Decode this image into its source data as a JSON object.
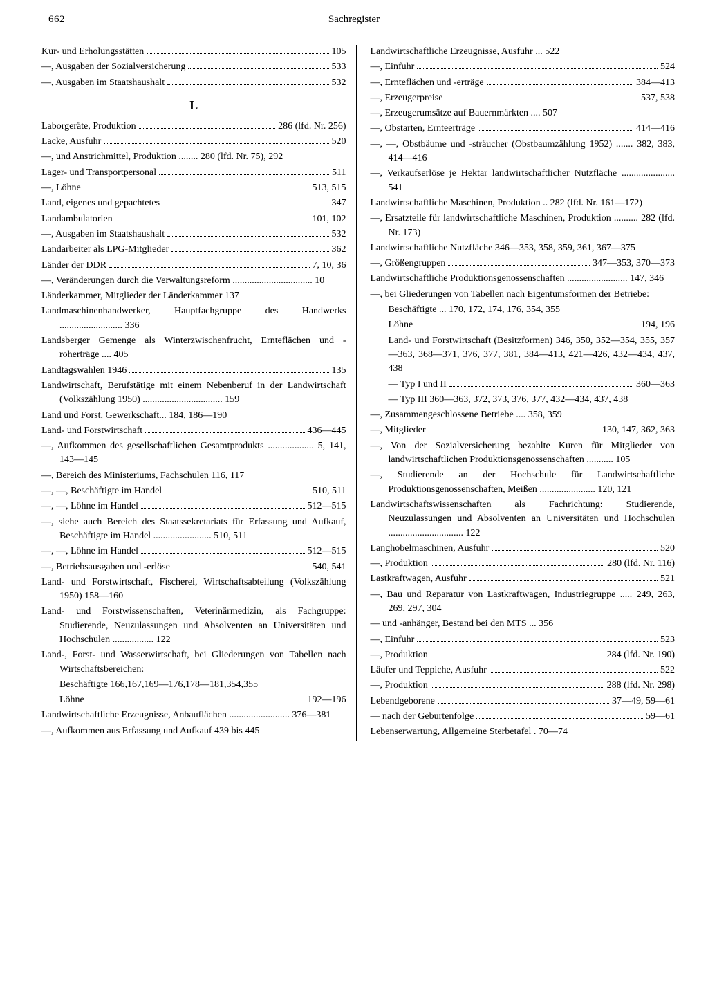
{
  "page_number": "662",
  "title": "Sachregister",
  "section_letter": "L",
  "left": [
    {
      "t": "dot",
      "label": "Kur- und Erholungsstätten",
      "page": "105"
    },
    {
      "t": "dot",
      "label": "—, Ausgaben der Sozialversicherung",
      "page": "533"
    },
    {
      "t": "dot",
      "label": "—, Ausgaben im Staatshaushalt",
      "page": "532"
    },
    {
      "t": "section"
    },
    {
      "t": "dot",
      "label": "Laborgeräte, Produktion",
      "page": "286 (lfd. Nr. 256)"
    },
    {
      "t": "dot",
      "label": "Lacke, Ausfuhr",
      "page": "520"
    },
    {
      "t": "hang",
      "text": "—, und Anstrichmittel, Produktion ........ 280 (lfd. Nr. 75),  292"
    },
    {
      "t": "dot",
      "label": "Lager- und Transportpersonal",
      "page": "511"
    },
    {
      "t": "dot",
      "label": "—, Löhne",
      "page": "513, 515"
    },
    {
      "t": "dot",
      "label": "Land, eigenes und gepachtetes",
      "page": "347"
    },
    {
      "t": "dot",
      "label": "Landambulatorien",
      "page": "101, 102"
    },
    {
      "t": "dot",
      "label": "—, Ausgaben im Staatshaushalt",
      "page": "532"
    },
    {
      "t": "dot",
      "label": "Landarbeiter als LPG-Mitglieder",
      "page": "362"
    },
    {
      "t": "dot",
      "label": "Länder der DDR",
      "page": "7, 10,  36"
    },
    {
      "t": "hang",
      "text": "—, Veränderungen durch die Verwaltungs­reform .................................  10"
    },
    {
      "t": "plain",
      "text": "Länderkammer, Mitglieder der Länderkammer 137"
    },
    {
      "t": "hang",
      "text": "Landmaschinenhandwerker, Hauptfachgruppe des Handwerks .......................... 336"
    },
    {
      "t": "hang",
      "text": "Landsberger Gemenge als Winterzwischen­frucht, Ernteflächen und -roherträge .... 405"
    },
    {
      "t": "dot",
      "label": "Landtagswahlen 1946",
      "page": "135"
    },
    {
      "t": "hang",
      "text": "Landwirtschaft, Berufstätige mit einem Neben­beruf in der Landwirtschaft (Volkszählung 1950) ................................. 159"
    },
    {
      "t": "plain",
      "text": "Land und Forst, Gewerkschaft... 184, 186—190"
    },
    {
      "t": "dot",
      "label": "Land- und Forstwirtschaft",
      "page": "436—445"
    },
    {
      "t": "hang",
      "text": "—, Aufkommen des gesellschaftlichen Gesamt­produkts ................... 5, 141, 143—145"
    },
    {
      "t": "plain",
      "text": "—, Bereich des Ministeriums, Fachschulen 116, 117"
    },
    {
      "t": "dot",
      "label": "—, —, Beschäftigte im Handel",
      "page": "510, 511"
    },
    {
      "t": "dot",
      "label": "—, —, Löhne im Handel",
      "page": "512—515"
    },
    {
      "t": "hang",
      "text": "—, siehe auch Bereich des Staatssekretariats für Erfassung und Aufkauf, Beschäftigte im Handel ........................ 510, 511"
    },
    {
      "t": "dot",
      "label": "—, —, Löhne im Handel",
      "page": "512—515"
    },
    {
      "t": "dot",
      "label": "—, Betriebsausgaben und -erlöse",
      "page": "540, 541"
    },
    {
      "t": "hang",
      "text": "Land- und Forstwirtschaft, Fischerei, Wirt­schaftsabteilung (Volkszählung 1950) 158—160"
    },
    {
      "t": "hang",
      "text": "Land- und Forstwissenschaften, Veterinär­medizin, als Fachgruppe: Studierende, Neu­zulassungen und Absolventen an Universi­täten und Hochschulen ................. 122"
    },
    {
      "t": "hang",
      "text": "Land-, Forst- und Wasserwirtschaft, bei Gliede­rungen von Tabellen nach Wirtschafts­bereichen:"
    },
    {
      "t": "cont",
      "text": "Beschäftigte 166,167,169—176,178—181,354,355"
    },
    {
      "t": "cont-dot",
      "label": "Löhne",
      "page": "192—196"
    },
    {
      "t": "hang",
      "text": "Landwirtschaftliche Erzeugnisse, Anbau­flächen ......................... 376—381"
    },
    {
      "t": "hang",
      "text": "—, Aufkommen aus Erfassung und Aufkauf 439 bis 445"
    }
  ],
  "right": [
    {
      "t": "plain",
      "text": "Landwirtschaftliche Erzeugnisse, Ausfuhr ... 522"
    },
    {
      "t": "dot",
      "label": "—, Einfuhr",
      "page": "524"
    },
    {
      "t": "dot",
      "label": "—, Ernteflächen und -erträge",
      "page": "384—413"
    },
    {
      "t": "dot",
      "label": "—, Erzeugerpreise",
      "page": "537, 538"
    },
    {
      "t": "plain",
      "text": "—, Erzeugerumsätze auf Bauernmärkten .... 507"
    },
    {
      "t": "dot",
      "label": "—, Obstarten, Ernteerträge",
      "page": "414—416"
    },
    {
      "t": "hang",
      "text": "—, —, Obstbäume und -sträucher (Obstbaum­zählung 1952) ....... 382, 383, 414—416"
    },
    {
      "t": "hang",
      "text": "—, Verkaufserlöse je Hektar landwirtschaft­licher Nutzfläche ...................... 541"
    },
    {
      "t": "hang",
      "text": "Landwirtschaftliche Maschinen, Produktion .. 282 (lfd. Nr. 161—172)"
    },
    {
      "t": "hang",
      "text": "—, Ersatzteile für landwirtschaftliche Maschi­nen, Produktion .......... 282 (lfd. Nr. 173)"
    },
    {
      "t": "hang",
      "text": "Landwirtschaftliche Nutzfläche 346—353, 358, 359, 361, 367—375"
    },
    {
      "t": "dot",
      "label": "—, Größengruppen",
      "page": "347—353, 370—373"
    },
    {
      "t": "hang",
      "text": "Landwirtschaftliche Produktionsgenossen­schaften ......................... 147, 346"
    },
    {
      "t": "hang",
      "text": "—, bei Gliederungen von Tabellen nach Eigen­tumsformen der Betriebe:"
    },
    {
      "t": "cont",
      "text": "Beschäftigte ... 170, 172, 174, 176, 354, 355"
    },
    {
      "t": "cont-dot",
      "label": "Löhne",
      "page": "194, 196"
    },
    {
      "t": "cont",
      "text": "Land- und Forstwirtschaft (Besitzformen) 346, 350, 352—354, 355, 357—363, 368—371, 376, 377, 381, 384—413, 421—426, 432—434, 437, 438"
    },
    {
      "t": "cont-dot",
      "label": "—  Typ I und II",
      "page": "360—363"
    },
    {
      "t": "cont",
      "text": "—  Typ III 360—363, 372, 373, 376, 377, 432—434, 437, 438"
    },
    {
      "t": "plain",
      "text": "—, Zusammengeschlossene Betriebe ....  358, 359"
    },
    {
      "t": "dot",
      "label": "—, Mitglieder",
      "page": "130, 147, 362, 363"
    },
    {
      "t": "hang",
      "text": "—, Von der Sozialversicherung bezahlte Kuren für Mitglieder von landwirtschaftlichen Produktionsgenossenschaften ........... 105"
    },
    {
      "t": "hang",
      "text": "—, Studierende an der Hochschule für Land­wirtschaftliche Produktionsgenossenschaf­ten, Meißen ....................... 120, 121"
    },
    {
      "t": "hang",
      "text": "Landwirtschaftswissenschaften als Fachrich­tung: Studierende, Neuzulassungen und Absolventen an Universitäten und Hoch­schulen ............................... 122"
    },
    {
      "t": "dot",
      "label": "Langhobelmaschinen, Ausfuhr",
      "page": "520"
    },
    {
      "t": "dot",
      "label": "—, Produktion",
      "page": "280 (lfd. Nr. 116)"
    },
    {
      "t": "dot",
      "label": "Lastkraftwagen, Ausfuhr",
      "page": "521"
    },
    {
      "t": "hang",
      "text": "—, Bau und Reparatur von Lastkraftwagen, Industriegruppe ..... 249, 263, 269, 297, 304"
    },
    {
      "t": "plain",
      "text": "—  und -anhänger, Bestand bei den MTS ... 356"
    },
    {
      "t": "dot",
      "label": "—, Einfuhr",
      "page": "523"
    },
    {
      "t": "dot",
      "label": "—, Produktion",
      "page": "284 (lfd. Nr. 190)"
    },
    {
      "t": "dot",
      "label": "Läufer und Teppiche, Ausfuhr",
      "page": "522"
    },
    {
      "t": "dot",
      "label": "—, Produktion",
      "page": "288 (lfd. Nr. 298)"
    },
    {
      "t": "dot",
      "label": "Lebendgeborene",
      "page": "37—49, 59—61"
    },
    {
      "t": "dot",
      "label": "—  nach der Geburtenfolge",
      "page": "59—61"
    },
    {
      "t": "plain",
      "text": "Lebenserwartung, Allgemeine Sterbetafel . 70—74"
    }
  ]
}
